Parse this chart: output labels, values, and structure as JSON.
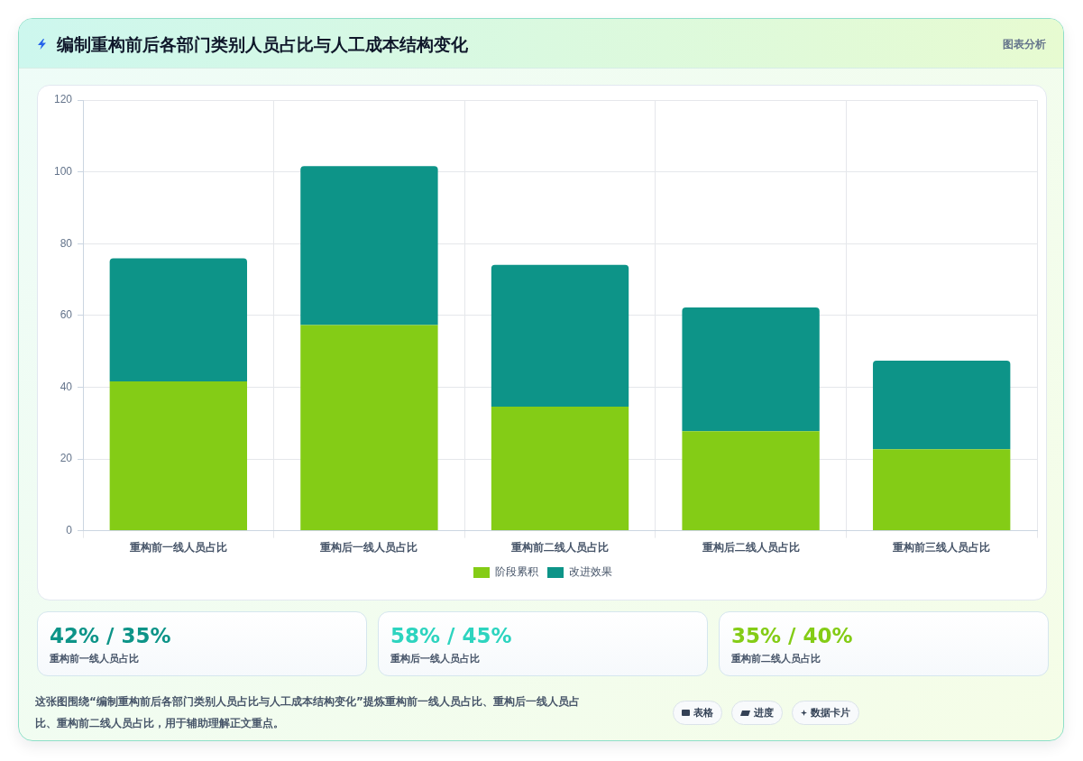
{
  "chart_data": [
    {
      "type": "bar",
      "title": "编制重构前后各部门类别人员占比与人工成本结构变化",
      "categories": [
        "重构前一线人员占比",
        "重构后一线人员占比",
        "重构前二线人员占比",
        "重构后二线人员占比",
        "重构前三线人员占比"
      ],
      "series": [
        {
          "name": "阶段累积",
          "color": "#84cc16",
          "values": [
            41.6,
            57.3,
            34.6,
            27.7,
            22.7
          ]
        },
        {
          "name": "改进效果",
          "color": "#0d9488",
          "values": [
            34.3,
            44.3,
            39.5,
            34.5,
            24.7
          ]
        }
      ],
      "stacked": true,
      "ylim": [
        0,
        120
      ],
      "yticks": [
        0,
        20,
        40,
        60,
        80,
        100,
        120
      ],
      "grid": true,
      "legend": "bottom",
      "annotations": [
        "图表分析",
        "这张图围绕“编制重构前后各部门类别人员占比与人工成本结构变化”提炼重构前一线人员占比、重构后一线人员占比、重构前二线人员占比，用于辅助理解正文重点。",
        "表格",
        "进度",
        "数据卡片"
      ]
    },
    {
      "type": "other",
      "annotations": [
        "42% / 35%",
        "重构前一线人员占比",
        "58% / 45%",
        "重构后一线人员占比",
        "35% / 40%",
        "重构前二线人员占比"
      ],
      "colors": [
        "#0d9488",
        "#2dd4bf",
        "#84cc16"
      ]
    }
  ]
}
